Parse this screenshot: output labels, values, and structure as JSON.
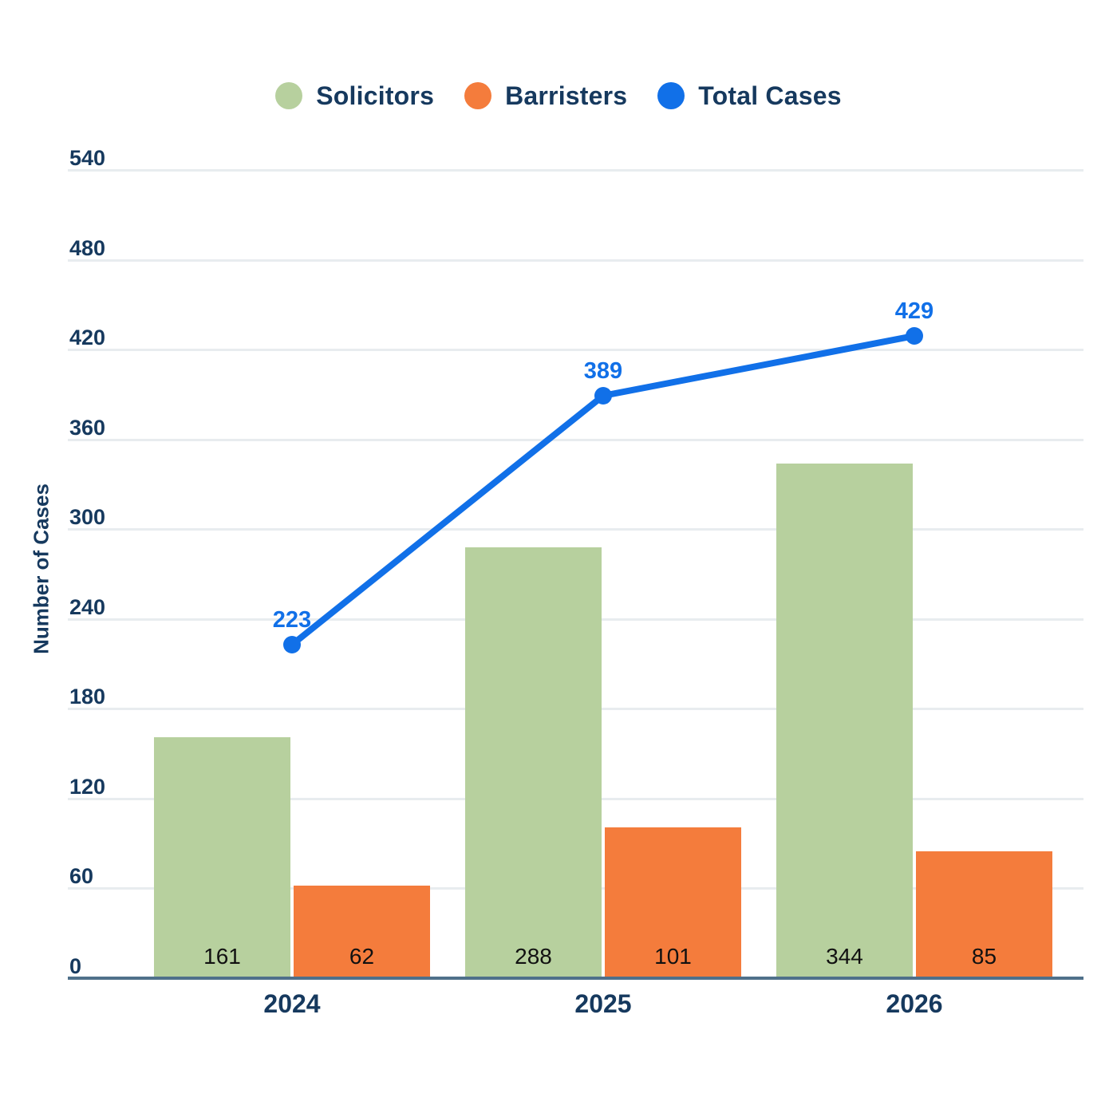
{
  "colors": {
    "background": "#ffffff",
    "axis_text": "#16395e",
    "bar_value_text": "#111111",
    "gridline": "#e8ecef",
    "axis_line": "#4f708a"
  },
  "chart_data": {
    "type": "bar",
    "subtype": "grouped-bars-with-line-overlay",
    "title": "",
    "xlabel": "",
    "ylabel": "Number of Cases",
    "categories": [
      "2024",
      "2025",
      "2026"
    ],
    "series": [
      {
        "name": "Solicitors",
        "kind": "bar",
        "color": "#b7d09e",
        "values": [
          161,
          288,
          344
        ]
      },
      {
        "name": "Barristers",
        "kind": "bar",
        "color": "#f47c3c",
        "values": [
          62,
          101,
          85
        ]
      },
      {
        "name": "Total Cases",
        "kind": "line",
        "color": "#1170e8",
        "values": [
          223,
          389,
          429
        ]
      }
    ],
    "ylim": [
      0,
      540
    ],
    "yticks": [
      0,
      60,
      120,
      180,
      240,
      300,
      360,
      420,
      480,
      540
    ],
    "grid": true,
    "legend_position": "top",
    "bar_value_labels_position": "inside-bottom",
    "line_point_labels_position": "above-point"
  }
}
